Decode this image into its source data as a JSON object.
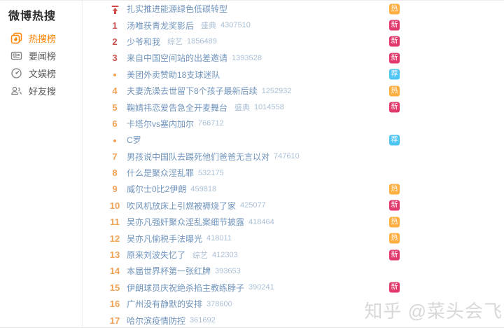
{
  "sidebar": {
    "title": "微博热搜",
    "items": [
      {
        "label": "热搜榜",
        "icon": "hot-list-icon",
        "active": true
      },
      {
        "label": "要闻榜",
        "icon": "news-icon",
        "active": false
      },
      {
        "label": "文娱榜",
        "icon": "entertainment-icon",
        "active": false
      },
      {
        "label": "好友搜",
        "icon": "friends-icon",
        "active": false
      }
    ]
  },
  "list": {
    "rows": [
      {
        "rank": "pin",
        "rank_style": "pin",
        "title": "扎实推进能源绿色低碳转型",
        "tag": "",
        "count": "",
        "badge": "热",
        "badge_style": "hot"
      },
      {
        "rank": "1",
        "rank_style": "top",
        "title": "汤唯获青龙奖影后",
        "tag": "盛典",
        "count": "4307510",
        "badge": "新",
        "badge_style": "new"
      },
      {
        "rank": "2",
        "rank_style": "top",
        "title": "少爷和我",
        "tag": "综艺",
        "count": "1856489",
        "badge": "新",
        "badge_style": "new"
      },
      {
        "rank": "3",
        "rank_style": "top",
        "title": "来自中国空间站的出差邀请",
        "tag": "",
        "count": "1393528",
        "badge": "新",
        "badge_style": "new"
      },
      {
        "rank": "dot",
        "rank_style": "dot",
        "title": "美团外卖赞助18支球迷队",
        "tag": "",
        "count": "",
        "badge": "荐",
        "badge_style": "rec"
      },
      {
        "rank": "4",
        "rank_style": "normal",
        "title": "夫妻洗澡去世留下8个孩子最新后续",
        "tag": "",
        "count": "1252932",
        "badge": "热",
        "badge_style": "hot"
      },
      {
        "rank": "5",
        "rank_style": "normal",
        "title": "鞠婧祎恋爱告急全开麦舞台",
        "tag": "盛典",
        "count": "1014558",
        "badge": "新",
        "badge_style": "new"
      },
      {
        "rank": "6",
        "rank_style": "normal",
        "title": "卡塔尔vs塞内加尔",
        "tag": "",
        "count": "766712",
        "badge": "",
        "badge_style": ""
      },
      {
        "rank": "dot",
        "rank_style": "dot",
        "title": "C罗",
        "tag": "",
        "count": "",
        "badge": "荐",
        "badge_style": "rec"
      },
      {
        "rank": "7",
        "rank_style": "normal",
        "title": "男孩说中国队去踢死他们爸爸无言以对",
        "tag": "",
        "count": "747610",
        "badge": "",
        "badge_style": ""
      },
      {
        "rank": "8",
        "rank_style": "normal",
        "title": "什么是聚众淫乱罪",
        "tag": "",
        "count": "532175",
        "badge": "",
        "badge_style": ""
      },
      {
        "rank": "9",
        "rank_style": "normal",
        "title": "威尔士0比2伊朗",
        "tag": "",
        "count": "459818",
        "badge": "热",
        "badge_style": "hot"
      },
      {
        "rank": "10",
        "rank_style": "normal",
        "title": "吹风机放床上引燃被褥烧了家",
        "tag": "",
        "count": "425077",
        "badge": "新",
        "badge_style": "new"
      },
      {
        "rank": "11",
        "rank_style": "normal",
        "title": "吴亦凡强奸聚众淫乱案细节披露",
        "tag": "",
        "count": "418464",
        "badge": "热",
        "badge_style": "hot"
      },
      {
        "rank": "12",
        "rank_style": "normal",
        "title": "吴亦凡偷税手法曝光",
        "tag": "",
        "count": "418011",
        "badge": "热",
        "badge_style": "hot"
      },
      {
        "rank": "13",
        "rank_style": "normal",
        "title": "原来刘波失忆了",
        "tag": "综艺",
        "count": "412303",
        "badge": "新",
        "badge_style": "new"
      },
      {
        "rank": "14",
        "rank_style": "normal",
        "title": "本届世界杯第一张红牌",
        "tag": "",
        "count": "393653",
        "badge": "",
        "badge_style": ""
      },
      {
        "rank": "15",
        "rank_style": "normal",
        "title": "伊朗球员庆祝绝杀掐主教练脖子",
        "tag": "",
        "count": "390241",
        "badge": "新",
        "badge_style": "new"
      },
      {
        "rank": "16",
        "rank_style": "normal",
        "title": "广州没有静默的安排",
        "tag": "",
        "count": "378600",
        "badge": "",
        "badge_style": ""
      },
      {
        "rank": "17",
        "rank_style": "normal",
        "title": "哈尔滨疫情防控",
        "tag": "",
        "count": "361692",
        "badge": "",
        "badge_style": ""
      }
    ]
  },
  "watermark": {
    "text": "知乎 @菜头会飞"
  },
  "colors": {
    "accent_orange": "#ff8200",
    "rank_top": "#c94f4b",
    "rank_other": "#f0a254",
    "badge_hot_bg": "#ffaf42",
    "badge_new_bg": "#e23a6d",
    "badge_rec_bg": "#4ec5f2",
    "title_text": "#7094bc",
    "meta_text": "#abc0d6",
    "watermark_text": "#d8d8d8"
  }
}
